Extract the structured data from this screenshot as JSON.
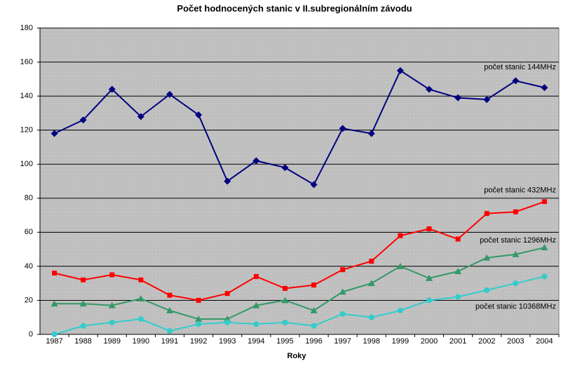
{
  "chart_data": {
    "type": "line",
    "title": "Počet hodnocených stanic v II.subregionálním závodu",
    "x_label": "Roky",
    "categories": [
      "1987",
      "1988",
      "1989",
      "1990",
      "1991",
      "1992",
      "1993",
      "1994",
      "1995",
      "1996",
      "1997",
      "1998",
      "1999",
      "2000",
      "2001",
      "2002",
      "2003",
      "2004"
    ],
    "series": [
      {
        "name": "počet stanic 144MHz",
        "color": "#000080",
        "marker": "diamond",
        "values": [
          118,
          126,
          144,
          128,
          141,
          129,
          90,
          102,
          98,
          88,
          121,
          118,
          155,
          144,
          139,
          138,
          149,
          145
        ]
      },
      {
        "name": "počet stanic 432MHz",
        "color": "#ff0000",
        "marker": "square",
        "values": [
          36,
          32,
          35,
          32,
          23,
          20,
          24,
          34,
          27,
          29,
          38,
          43,
          58,
          62,
          56,
          71,
          72,
          78
        ]
      },
      {
        "name": "počet stanic 1296MHz",
        "color": "#339966",
        "marker": "triangle",
        "values": [
          18,
          18,
          17,
          21,
          14,
          9,
          9,
          17,
          20,
          14,
          25,
          30,
          40,
          33,
          37,
          45,
          47,
          51
        ]
      },
      {
        "name": "počet stanic 10368MHz",
        "color": "#33cccc",
        "marker": "circle",
        "values": [
          0,
          5,
          7,
          9,
          2,
          6,
          7,
          6,
          7,
          5,
          12,
          10,
          14,
          20,
          22,
          26,
          30,
          34
        ]
      }
    ],
    "ylim": [
      0,
      180
    ],
    "yticks": [
      0,
      20,
      40,
      60,
      80,
      100,
      120,
      140,
      160,
      180
    ],
    "grid": true
  }
}
